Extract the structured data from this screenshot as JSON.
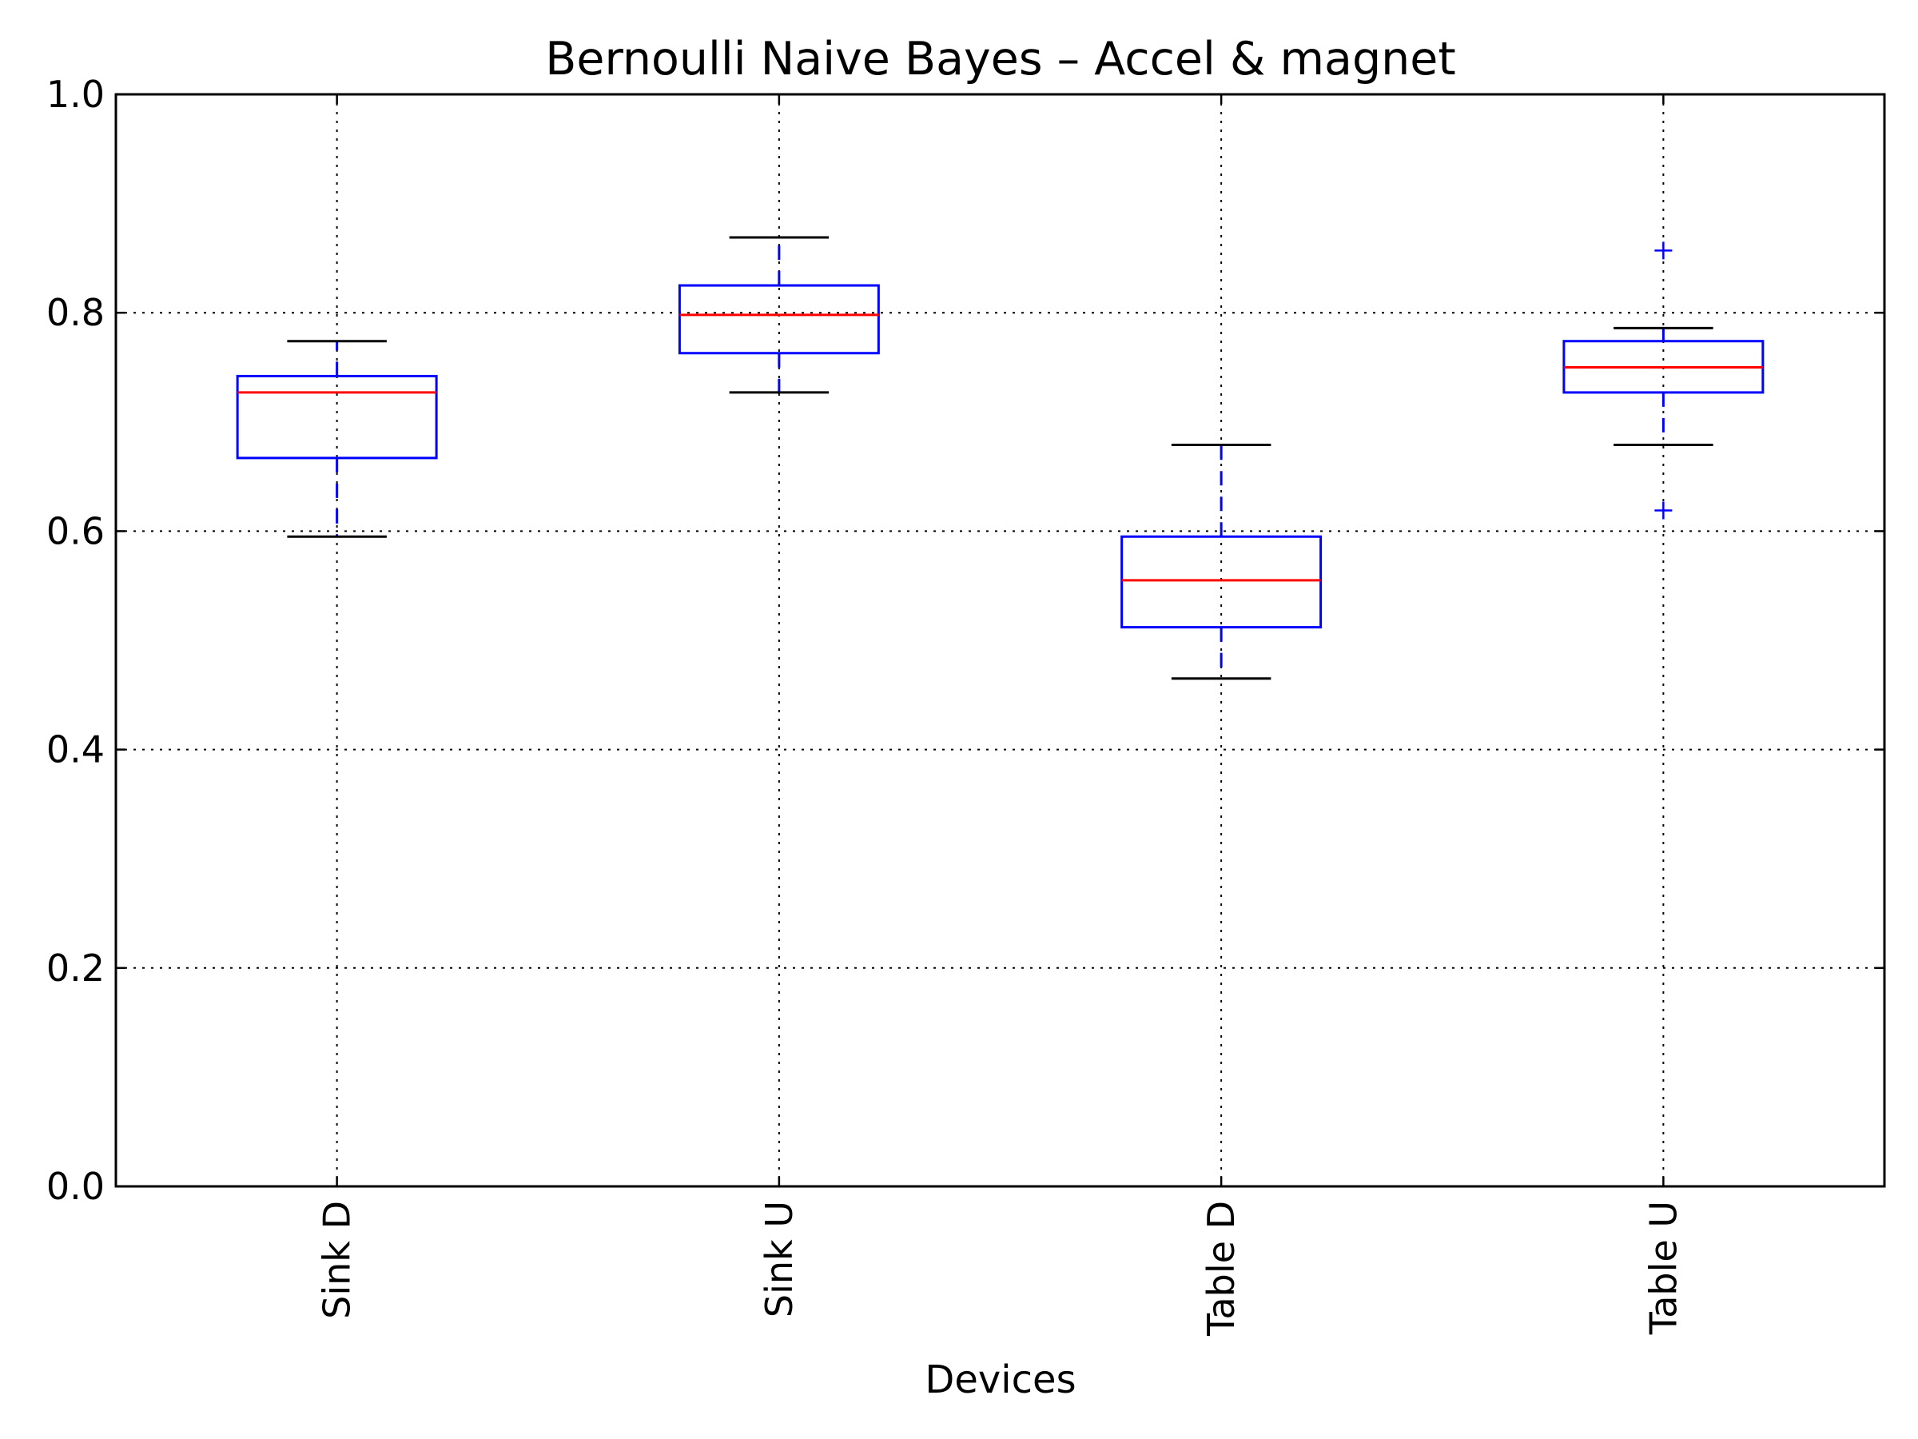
{
  "chart_data": {
    "type": "box",
    "title": "Bernoulli Naive Bayes – Accel & magnet",
    "xlabel": "Devices",
    "ylabel": "",
    "ylim": [
      0.0,
      1.0
    ],
    "yticks": [
      "0.0",
      "0.2",
      "0.4",
      "0.6",
      "0.8",
      "1.0"
    ],
    "grid": true,
    "categories": [
      "Sink D",
      "Sink U",
      "Table D",
      "Table U"
    ],
    "boxes": [
      {
        "whisker_low": 0.595,
        "q1": 0.667,
        "median": 0.727,
        "q3": 0.742,
        "whisker_high": 0.774,
        "outliers": []
      },
      {
        "whisker_low": 0.727,
        "q1": 0.763,
        "median": 0.798,
        "q3": 0.825,
        "whisker_high": 0.869,
        "outliers": []
      },
      {
        "whisker_low": 0.465,
        "q1": 0.512,
        "median": 0.555,
        "q3": 0.595,
        "whisker_high": 0.679,
        "outliers": []
      },
      {
        "whisker_low": 0.679,
        "q1": 0.727,
        "median": 0.75,
        "q3": 0.774,
        "whisker_high": 0.786,
        "outliers": [
          0.857,
          0.619
        ]
      }
    ],
    "colors": {
      "box": "#0000ff",
      "median": "#ff0000",
      "cap": "#000000",
      "grid": "#000000"
    }
  }
}
